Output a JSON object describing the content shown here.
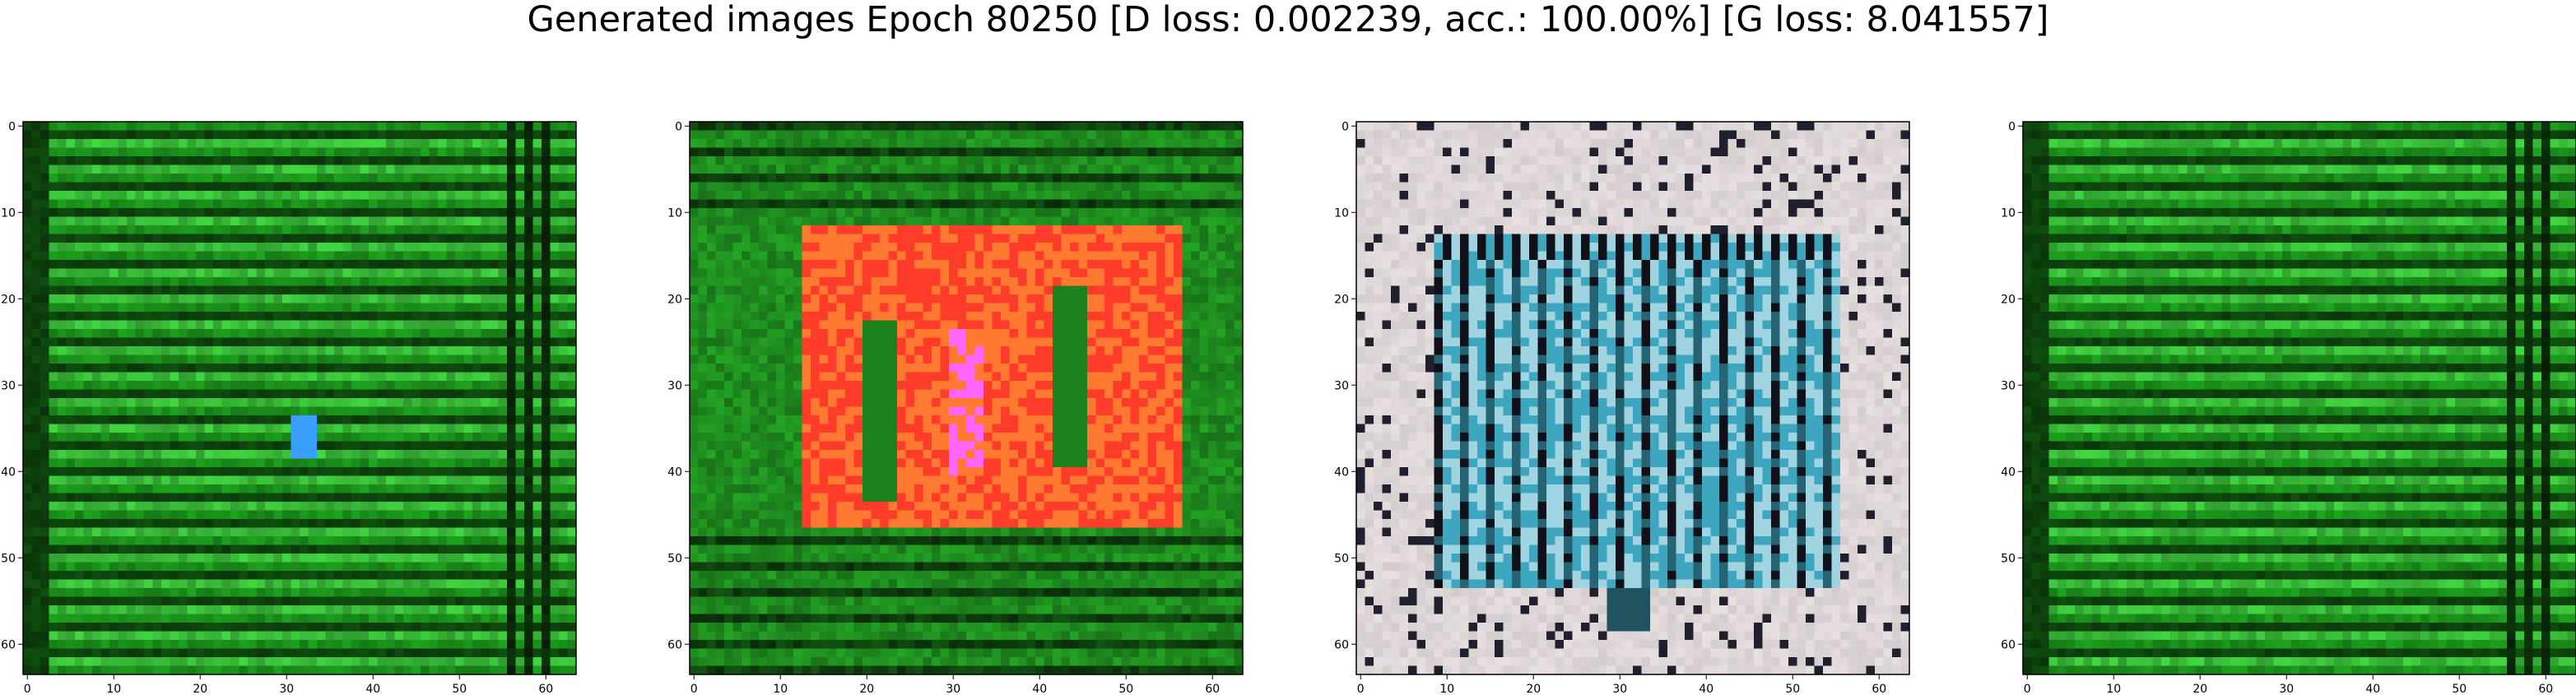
{
  "title": "Generated images Epoch 80250 [D loss: 0.002239, acc.: 100.00%] [G loss: 8.041557]",
  "chart_data": [
    {
      "type": "heatmap",
      "description_colors": {
        "base": "#1a8f1a",
        "stripe_dark": "#0c3d0c",
        "stripe_light": "#3cc43c",
        "spot": "#3aa0ff"
      },
      "x_ticks": [
        0,
        10,
        20,
        30,
        40,
        50,
        60
      ],
      "y_ticks": [
        0,
        10,
        20,
        30,
        40,
        50,
        60
      ],
      "xlim": [
        -0.5,
        63.5
      ],
      "ylim": [
        63.5,
        -0.5
      ]
    },
    {
      "type": "heatmap",
      "description_colors": {
        "base": "#1f8f1f",
        "rect": "#ff3b2a",
        "rect_alt": "#ff7a30",
        "highlight": "#ff66ff"
      },
      "x_ticks": [
        0,
        10,
        20,
        30,
        40,
        50,
        60
      ],
      "y_ticks": [
        0,
        10,
        20,
        30,
        40,
        50,
        60
      ],
      "xlim": [
        -0.5,
        63.5
      ],
      "ylim": [
        63.5,
        -0.5
      ]
    },
    {
      "type": "heatmap",
      "description_colors": {
        "base": "#e6dede",
        "rect": "#3fa6c0",
        "rect_light": "#9fd4e0",
        "dark": "#101018"
      },
      "x_ticks": [
        0,
        10,
        20,
        30,
        40,
        50,
        60
      ],
      "y_ticks": [
        0,
        10,
        20,
        30,
        40,
        50,
        60
      ],
      "xlim": [
        -0.5,
        63.5
      ],
      "ylim": [
        63.5,
        -0.5
      ]
    },
    {
      "type": "heatmap",
      "description_colors": {
        "base": "#1a8f1a",
        "stripe_dark": "#0c3d0c",
        "stripe_light": "#3cc43c"
      },
      "x_ticks": [
        0,
        10,
        20,
        30,
        40,
        50,
        60
      ],
      "y_ticks": [
        0,
        10,
        20,
        30,
        40,
        50,
        60
      ],
      "xlim": [
        -0.5,
        63.5
      ],
      "ylim": [
        63.5,
        -0.5
      ]
    }
  ]
}
